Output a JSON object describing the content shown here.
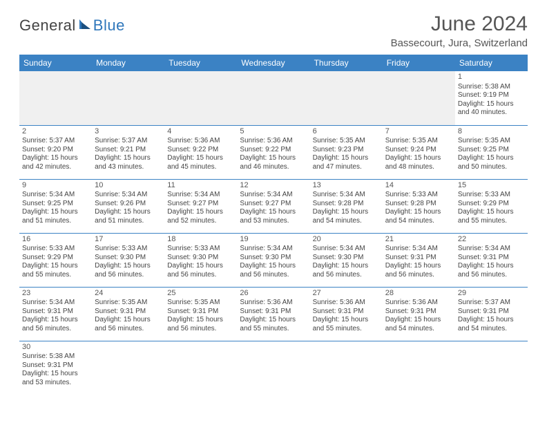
{
  "brand": {
    "part1": "General",
    "part2": "Blue"
  },
  "title": "June 2024",
  "location": "Bassecourt, Jura, Switzerland",
  "colors": {
    "header_bg": "#3b82c4",
    "header_text": "#ffffff",
    "cell_border": "#3b82c4",
    "text": "#444444",
    "title_text": "#555555",
    "brand_blue": "#2f77bb",
    "empty_bg": "#efefef"
  },
  "weekdays": [
    "Sunday",
    "Monday",
    "Tuesday",
    "Wednesday",
    "Thursday",
    "Friday",
    "Saturday"
  ],
  "days": {
    "1": {
      "sunrise": "5:38 AM",
      "sunset": "9:19 PM",
      "daylight": "15 hours and 40 minutes."
    },
    "2": {
      "sunrise": "5:37 AM",
      "sunset": "9:20 PM",
      "daylight": "15 hours and 42 minutes."
    },
    "3": {
      "sunrise": "5:37 AM",
      "sunset": "9:21 PM",
      "daylight": "15 hours and 43 minutes."
    },
    "4": {
      "sunrise": "5:36 AM",
      "sunset": "9:22 PM",
      "daylight": "15 hours and 45 minutes."
    },
    "5": {
      "sunrise": "5:36 AM",
      "sunset": "9:22 PM",
      "daylight": "15 hours and 46 minutes."
    },
    "6": {
      "sunrise": "5:35 AM",
      "sunset": "9:23 PM",
      "daylight": "15 hours and 47 minutes."
    },
    "7": {
      "sunrise": "5:35 AM",
      "sunset": "9:24 PM",
      "daylight": "15 hours and 48 minutes."
    },
    "8": {
      "sunrise": "5:35 AM",
      "sunset": "9:25 PM",
      "daylight": "15 hours and 50 minutes."
    },
    "9": {
      "sunrise": "5:34 AM",
      "sunset": "9:25 PM",
      "daylight": "15 hours and 51 minutes."
    },
    "10": {
      "sunrise": "5:34 AM",
      "sunset": "9:26 PM",
      "daylight": "15 hours and 51 minutes."
    },
    "11": {
      "sunrise": "5:34 AM",
      "sunset": "9:27 PM",
      "daylight": "15 hours and 52 minutes."
    },
    "12": {
      "sunrise": "5:34 AM",
      "sunset": "9:27 PM",
      "daylight": "15 hours and 53 minutes."
    },
    "13": {
      "sunrise": "5:34 AM",
      "sunset": "9:28 PM",
      "daylight": "15 hours and 54 minutes."
    },
    "14": {
      "sunrise": "5:33 AM",
      "sunset": "9:28 PM",
      "daylight": "15 hours and 54 minutes."
    },
    "15": {
      "sunrise": "5:33 AM",
      "sunset": "9:29 PM",
      "daylight": "15 hours and 55 minutes."
    },
    "16": {
      "sunrise": "5:33 AM",
      "sunset": "9:29 PM",
      "daylight": "15 hours and 55 minutes."
    },
    "17": {
      "sunrise": "5:33 AM",
      "sunset": "9:30 PM",
      "daylight": "15 hours and 56 minutes."
    },
    "18": {
      "sunrise": "5:33 AM",
      "sunset": "9:30 PM",
      "daylight": "15 hours and 56 minutes."
    },
    "19": {
      "sunrise": "5:34 AM",
      "sunset": "9:30 PM",
      "daylight": "15 hours and 56 minutes."
    },
    "20": {
      "sunrise": "5:34 AM",
      "sunset": "9:30 PM",
      "daylight": "15 hours and 56 minutes."
    },
    "21": {
      "sunrise": "5:34 AM",
      "sunset": "9:31 PM",
      "daylight": "15 hours and 56 minutes."
    },
    "22": {
      "sunrise": "5:34 AM",
      "sunset": "9:31 PM",
      "daylight": "15 hours and 56 minutes."
    },
    "23": {
      "sunrise": "5:34 AM",
      "sunset": "9:31 PM",
      "daylight": "15 hours and 56 minutes."
    },
    "24": {
      "sunrise": "5:35 AM",
      "sunset": "9:31 PM",
      "daylight": "15 hours and 56 minutes."
    },
    "25": {
      "sunrise": "5:35 AM",
      "sunset": "9:31 PM",
      "daylight": "15 hours and 56 minutes."
    },
    "26": {
      "sunrise": "5:36 AM",
      "sunset": "9:31 PM",
      "daylight": "15 hours and 55 minutes."
    },
    "27": {
      "sunrise": "5:36 AM",
      "sunset": "9:31 PM",
      "daylight": "15 hours and 55 minutes."
    },
    "28": {
      "sunrise": "5:36 AM",
      "sunset": "9:31 PM",
      "daylight": "15 hours and 54 minutes."
    },
    "29": {
      "sunrise": "5:37 AM",
      "sunset": "9:31 PM",
      "daylight": "15 hours and 54 minutes."
    },
    "30": {
      "sunrise": "5:38 AM",
      "sunset": "9:31 PM",
      "daylight": "15 hours and 53 minutes."
    }
  },
  "labels": {
    "sunrise": "Sunrise:",
    "sunset": "Sunset:",
    "daylight": "Daylight:"
  },
  "layout": {
    "first_weekday_index": 6,
    "num_days": 30,
    "weeks": 6
  }
}
